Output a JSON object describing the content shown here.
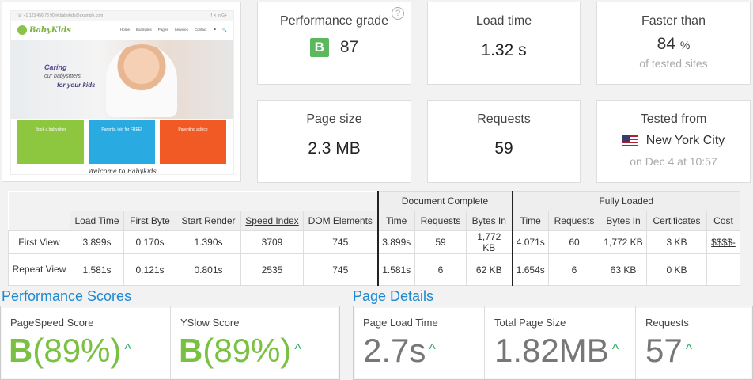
{
  "preview": {
    "topbar_left": "☏ +1 123 456 78 90   ✉ babykids@example.com",
    "topbar_right": "f  ✕  in  G+",
    "logo": "BabyKids",
    "menu": [
      "Home",
      "Examples",
      "Pages",
      "Services",
      "Contact",
      "⚑",
      "🔍"
    ],
    "hero_line1": "Caring",
    "hero_line2": "our babysitters",
    "hero_line3": "for your kids",
    "cards": [
      {
        "title": "Book a babysitter",
        "color": "#8dc63f"
      },
      {
        "title": "Parents, join for FREE!",
        "color": "#29abe2"
      },
      {
        "title": "Parenting advice",
        "color": "#f15a24"
      }
    ],
    "welcome": "Welcome to Babykids"
  },
  "stats": {
    "performance_grade": {
      "label": "Performance grade",
      "grade": "B",
      "value": "87",
      "help": "?"
    },
    "load_time": {
      "label": "Load time",
      "value": "1.32 s"
    },
    "faster_than": {
      "label": "Faster than",
      "value": "84",
      "unit": "%",
      "sub": "of tested sites"
    },
    "page_size": {
      "label": "Page size",
      "value": "2.3 MB"
    },
    "requests": {
      "label": "Requests",
      "value": "59"
    },
    "tested_from": {
      "label": "Tested from",
      "location": "New York City",
      "date": "on Dec 4 at 10:57"
    }
  },
  "table": {
    "group_document": "Document Complete",
    "group_fully": "Fully Loaded",
    "headers": [
      "Load Time",
      "First Byte",
      "Start Render",
      "Speed Index",
      "DOM Elements",
      "Time",
      "Requests",
      "Bytes In",
      "Time",
      "Requests",
      "Bytes In",
      "Certificates",
      "Cost"
    ],
    "rows": [
      {
        "label": "First View",
        "cells": [
          "3.899s",
          "0.170s",
          "1.390s",
          "3709",
          "745",
          "3.899s",
          "59",
          "1,772 KB",
          "4.071s",
          "60",
          "1,772 KB",
          "3 KB",
          "$$$$-"
        ]
      },
      {
        "label": "Repeat View",
        "cells": [
          "1.581s",
          "0.121s",
          "0.801s",
          "2535",
          "745",
          "1.581s",
          "6",
          "62 KB",
          "1.654s",
          "6",
          "63 KB",
          "0 KB",
          ""
        ]
      }
    ]
  },
  "performance_scores": {
    "title": "Performance Scores",
    "items": [
      {
        "label": "PageSpeed Score",
        "grade": "B",
        "value": "(89%)",
        "arrow": "^"
      },
      {
        "label": "YSlow Score",
        "grade": "B",
        "value": "(89%)",
        "arrow": "^"
      }
    ]
  },
  "page_details": {
    "title": "Page Details",
    "items": [
      {
        "label": "Page Load Time",
        "value": "2.7s",
        "arrow": "^"
      },
      {
        "label": "Total Page Size",
        "value": "1.82MB",
        "arrow": "^"
      },
      {
        "label": "Requests",
        "value": "57",
        "arrow": "^"
      }
    ]
  }
}
